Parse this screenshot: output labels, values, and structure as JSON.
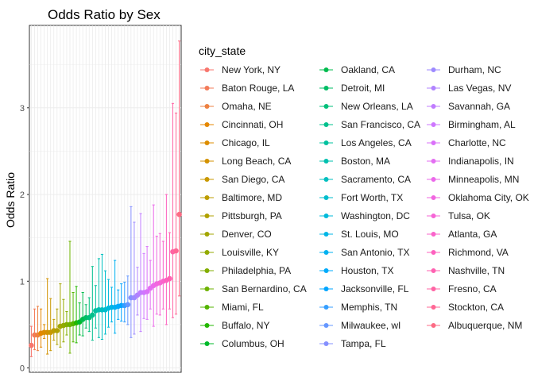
{
  "chart_data": {
    "type": "scatter",
    "title": "Odds Ratio by Sex",
    "xlabel": "",
    "ylabel": "Odds Ratio",
    "ylim": [
      -0.05,
      3.95
    ],
    "yticks": [
      0,
      1,
      2,
      3
    ],
    "grid": true,
    "legend": {
      "title": "city_state",
      "placement": "right",
      "columns": 3
    },
    "series": [
      {
        "name": "New York, NY",
        "color": "#F8766D",
        "or": 0.26,
        "lo": 0.13,
        "hi": 0.48
      },
      {
        "name": "Baton Rouge, LA",
        "color": "#F37B59",
        "or": 0.38,
        "lo": 0.21,
        "hi": 0.68
      },
      {
        "name": "Omaha, NE",
        "color": "#ED8141",
        "or": 0.38,
        "lo": 0.2,
        "hi": 0.71
      },
      {
        "name": "Cincinnati, OH",
        "color": "#E58700",
        "or": 0.4,
        "lo": 0.24,
        "hi": 0.68
      },
      {
        "name": "Chicago, IL",
        "color": "#DC8D00",
        "or": 0.41,
        "lo": 0.34,
        "hi": 0.5
      },
      {
        "name": "Long Beach, CA",
        "color": "#D39200",
        "or": 0.41,
        "lo": 0.16,
        "hi": 1.03
      },
      {
        "name": "San Diego, CA",
        "color": "#C99800",
        "or": 0.41,
        "lo": 0.2,
        "hi": 0.8
      },
      {
        "name": "Baltimore, MD",
        "color": "#BD9D00",
        "or": 0.43,
        "lo": 0.32,
        "hi": 0.56
      },
      {
        "name": "Pittsburgh, PA",
        "color": "#B0A100",
        "or": 0.43,
        "lo": 0.27,
        "hi": 0.68
      },
      {
        "name": "Denver, CO",
        "color": "#A3A500",
        "or": 0.48,
        "lo": 0.24,
        "hi": 0.97
      },
      {
        "name": "Louisville, KY",
        "color": "#93AA00",
        "or": 0.49,
        "lo": 0.3,
        "hi": 0.79
      },
      {
        "name": "Philadelphia, PA",
        "color": "#82AD00",
        "or": 0.5,
        "lo": 0.38,
        "hi": 0.65
      },
      {
        "name": "San Bernardino, CA",
        "color": "#6EB200",
        "or": 0.5,
        "lo": 0.17,
        "hi": 1.46
      },
      {
        "name": "Miami, FL",
        "color": "#53B400",
        "or": 0.51,
        "lo": 0.3,
        "hi": 0.87
      },
      {
        "name": "Buffalo, NY",
        "color": "#23B700",
        "or": 0.52,
        "lo": 0.29,
        "hi": 0.94
      },
      {
        "name": "Columbus, OH",
        "color": "#00B92A",
        "or": 0.53,
        "lo": 0.38,
        "hi": 0.75
      },
      {
        "name": "Oakland, CA",
        "color": "#00BB4E",
        "or": 0.56,
        "lo": 0.37,
        "hi": 0.87
      },
      {
        "name": "Detroit, MI",
        "color": "#00BD65",
        "or": 0.58,
        "lo": 0.46,
        "hi": 0.73
      },
      {
        "name": "New Orleans, LA",
        "color": "#00BF7A",
        "or": 0.58,
        "lo": 0.42,
        "hi": 0.81
      },
      {
        "name": "San Francisco, CA",
        "color": "#00C08D",
        "or": 0.61,
        "lo": 0.32,
        "hi": 1.17
      },
      {
        "name": "Los Angeles, CA",
        "color": "#00C19F",
        "or": 0.66,
        "lo": 0.46,
        "hi": 0.95
      },
      {
        "name": "Boston, MA",
        "color": "#00C0AF",
        "or": 0.67,
        "lo": 0.35,
        "hi": 1.26
      },
      {
        "name": "Sacramento, CA",
        "color": "#00BFBF",
        "or": 0.67,
        "lo": 0.33,
        "hi": 1.31
      },
      {
        "name": "Fort Worth, TX",
        "color": "#00BDCD",
        "or": 0.67,
        "lo": 0.39,
        "hi": 1.12
      },
      {
        "name": "Washington, DC",
        "color": "#00BADA",
        "or": 0.69,
        "lo": 0.47,
        "hi": 1.02
      },
      {
        "name": "St. Louis, MO",
        "color": "#00B6E6",
        "or": 0.7,
        "lo": 0.53,
        "hi": 0.93
      },
      {
        "name": "San Antonio, TX",
        "color": "#00B1F1",
        "or": 0.7,
        "lo": 0.4,
        "hi": 1.24
      },
      {
        "name": "Houston, TX",
        "color": "#00ABFB",
        "or": 0.71,
        "lo": 0.56,
        "hi": 0.9
      },
      {
        "name": "Jacksonville, FL",
        "color": "#00A5FF",
        "or": 0.72,
        "lo": 0.54,
        "hi": 0.97
      },
      {
        "name": "Memphis, TN",
        "color": "#359EFF",
        "or": 0.72,
        "lo": 0.53,
        "hi": 0.99
      },
      {
        "name": "Milwaukee, wI",
        "color": "#6597FF",
        "or": 0.73,
        "lo": 0.5,
        "hi": 1.06
      },
      {
        "name": "Tampa, FL",
        "color": "#8590FF",
        "or": 0.81,
        "lo": 0.35,
        "hi": 1.86
      },
      {
        "name": "Durham, NC",
        "color": "#9D8AFF",
        "or": 0.81,
        "lo": 0.39,
        "hi": 1.68
      },
      {
        "name": "Las Vegas, NV",
        "color": "#B083FF",
        "or": 0.84,
        "lo": 0.61,
        "hi": 1.16
      },
      {
        "name": "Savannah, GA",
        "color": "#C07CFF",
        "or": 0.87,
        "lo": 0.42,
        "hi": 1.78
      },
      {
        "name": "Birmingham, AL",
        "color": "#CE77FF",
        "or": 0.87,
        "lo": 0.57,
        "hi": 1.32
      },
      {
        "name": "Charlotte, NC",
        "color": "#DA71F9",
        "or": 0.88,
        "lo": 0.56,
        "hi": 1.4
      },
      {
        "name": "Indianapolis, IN",
        "color": "#E36EF2",
        "or": 0.92,
        "lo": 0.68,
        "hi": 1.24
      },
      {
        "name": "Minneapolis, MN",
        "color": "#EB69EA",
        "or": 0.95,
        "lo": 0.48,
        "hi": 1.88
      },
      {
        "name": "Oklahoma City, OK",
        "color": "#F166E0",
        "or": 0.97,
        "lo": 0.62,
        "hi": 1.52
      },
      {
        "name": "Tulsa, OK",
        "color": "#F665D6",
        "or": 0.98,
        "lo": 0.61,
        "hi": 1.55
      },
      {
        "name": "Atlanta, GA",
        "color": "#FA63CB",
        "or": 1.0,
        "lo": 0.68,
        "hi": 1.46
      },
      {
        "name": "Richmond, VA",
        "color": "#FD61BF",
        "or": 1.01,
        "lo": 0.5,
        "hi": 2.0
      },
      {
        "name": "Nashville, TN",
        "color": "#FF62B2",
        "or": 1.03,
        "lo": 0.68,
        "hi": 1.56
      },
      {
        "name": "Fresno, CA",
        "color": "#FF64A4",
        "or": 1.34,
        "lo": 0.58,
        "hi": 3.05
      },
      {
        "name": "Stockton, CA",
        "color": "#FF6795",
        "or": 1.35,
        "lo": 0.62,
        "hi": 2.94
      },
      {
        "name": "Albuquerque, NM",
        "color": "#FC6B84",
        "or": 1.77,
        "lo": 0.83,
        "hi": 3.77
      }
    ]
  }
}
